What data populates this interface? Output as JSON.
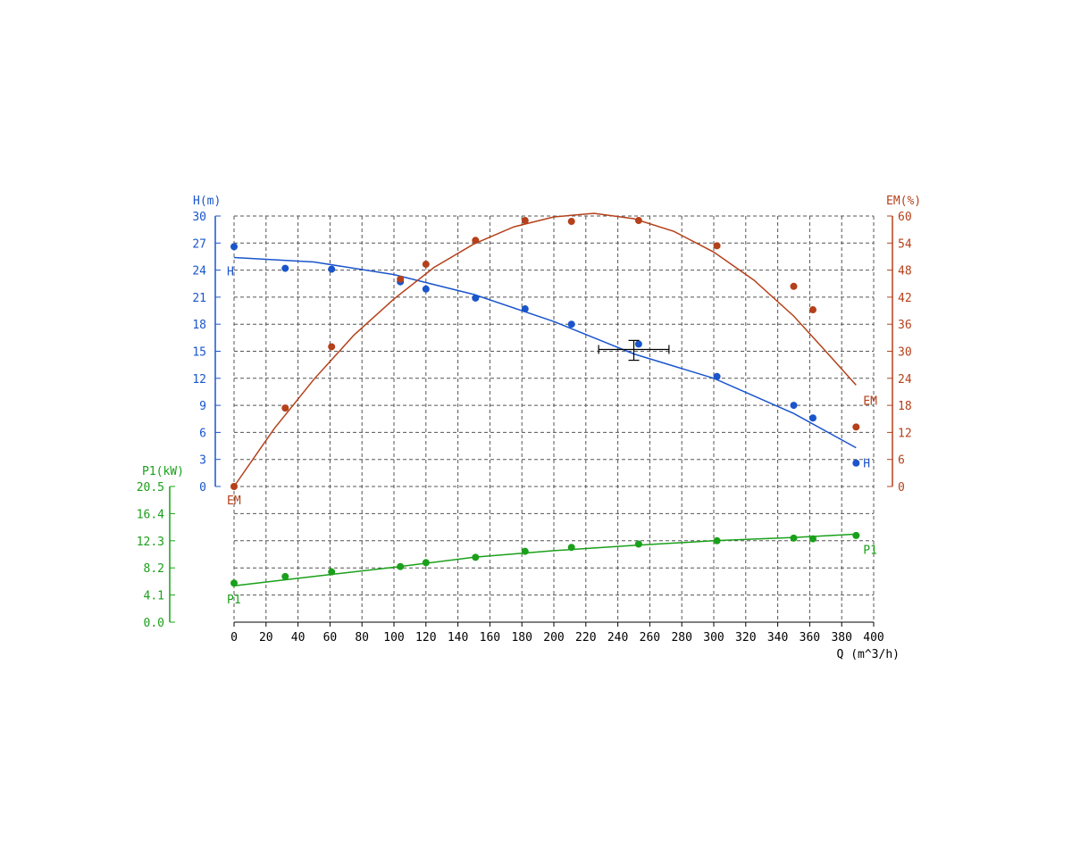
{
  "chart_data": {
    "type": "scatter",
    "x_axis": {
      "label": "Q (m^3/h)",
      "range": [
        0,
        400
      ],
      "ticks": [
        "0",
        "20",
        "40",
        "60",
        "80",
        "100",
        "120",
        "140",
        "160",
        "180",
        "200",
        "220",
        "240",
        "260",
        "280",
        "300",
        "320",
        "340",
        "360",
        "380",
        "400"
      ]
    },
    "y_axes": {
      "H": {
        "label": "H(m)",
        "range": [
          0,
          30
        ],
        "ticks": [
          "0",
          "3",
          "6",
          "9",
          "12",
          "15",
          "18",
          "21",
          "24",
          "27",
          "30"
        ],
        "color": "#1a55cc"
      },
      "EM": {
        "label": "EM(%)",
        "range": [
          0,
          60
        ],
        "ticks": [
          "0",
          "6",
          "12",
          "18",
          "24",
          "30",
          "36",
          "42",
          "48",
          "54",
          "60"
        ],
        "color": "#b5401a"
      },
      "P1": {
        "label": "P1(kW)",
        "range": [
          0,
          20.5
        ],
        "ticks": [
          "0.0",
          "4.1",
          "8.2",
          "12.3",
          "16.4",
          "20.5"
        ],
        "color": "#1aa01a"
      }
    },
    "series": [
      {
        "name": "H",
        "axis": "H",
        "color": "#1a55cc",
        "points": [
          [
            0,
            26.6
          ],
          [
            32,
            24.2
          ],
          [
            61,
            24.1
          ],
          [
            104,
            22.7
          ],
          [
            120,
            21.9
          ],
          [
            151,
            20.9
          ],
          [
            182,
            19.7
          ],
          [
            211,
            18.0
          ],
          [
            253,
            15.8
          ],
          [
            302,
            12.2
          ],
          [
            350,
            9.0
          ],
          [
            362,
            7.6
          ],
          [
            389,
            2.6
          ]
        ],
        "fit_line": [
          [
            0,
            25.4
          ],
          [
            50,
            24.9
          ],
          [
            100,
            23.5
          ],
          [
            150,
            21.3
          ],
          [
            200,
            18.3
          ],
          [
            250,
            14.7
          ],
          [
            300,
            12.0
          ],
          [
            350,
            8.1
          ],
          [
            389,
            4.3
          ]
        ]
      },
      {
        "name": "EM",
        "axis": "EM",
        "color": "#b5401a",
        "points": [
          [
            0,
            0
          ],
          [
            32,
            17.4
          ],
          [
            61,
            31.0
          ],
          [
            104,
            46.0
          ],
          [
            120,
            49.3
          ],
          [
            151,
            54.6
          ],
          [
            182,
            59.0
          ],
          [
            211,
            58.8
          ],
          [
            253,
            59.0
          ],
          [
            302,
            53.4
          ],
          [
            350,
            44.4
          ],
          [
            362,
            39.2
          ],
          [
            389,
            13.2
          ]
        ],
        "fit_line": [
          [
            0,
            0
          ],
          [
            25,
            12.8
          ],
          [
            50,
            23.8
          ],
          [
            75,
            33.6
          ],
          [
            100,
            41.6
          ],
          [
            125,
            48.6
          ],
          [
            150,
            53.8
          ],
          [
            175,
            57.6
          ],
          [
            200,
            59.8
          ],
          [
            225,
            60.6
          ],
          [
            250,
            59.4
          ],
          [
            275,
            56.6
          ],
          [
            300,
            52.0
          ],
          [
            325,
            45.8
          ],
          [
            350,
            37.8
          ],
          [
            370,
            30.0
          ],
          [
            389,
            22.5
          ]
        ]
      },
      {
        "name": "P1",
        "axis": "P1",
        "color": "#1aa01a",
        "points": [
          [
            0,
            5.9
          ],
          [
            32,
            6.9
          ],
          [
            61,
            7.6
          ],
          [
            104,
            8.4
          ],
          [
            120,
            9.0
          ],
          [
            151,
            9.8
          ],
          [
            182,
            10.7
          ],
          [
            211,
            11.3
          ],
          [
            253,
            11.8
          ],
          [
            302,
            12.3
          ],
          [
            350,
            12.7
          ],
          [
            362,
            12.6
          ],
          [
            389,
            13.1
          ]
        ],
        "fit_line": [
          [
            0,
            5.5
          ],
          [
            50,
            6.9
          ],
          [
            100,
            8.3
          ],
          [
            150,
            9.8
          ],
          [
            200,
            10.8
          ],
          [
            250,
            11.6
          ],
          [
            300,
            12.3
          ],
          [
            350,
            12.8
          ],
          [
            389,
            13.3
          ]
        ]
      }
    ],
    "operating_point": {
      "x": 250,
      "y": 15.2,
      "x_error": [
        228,
        272
      ],
      "y_error": [
        14.0,
        16.2
      ]
    },
    "grid": true
  }
}
